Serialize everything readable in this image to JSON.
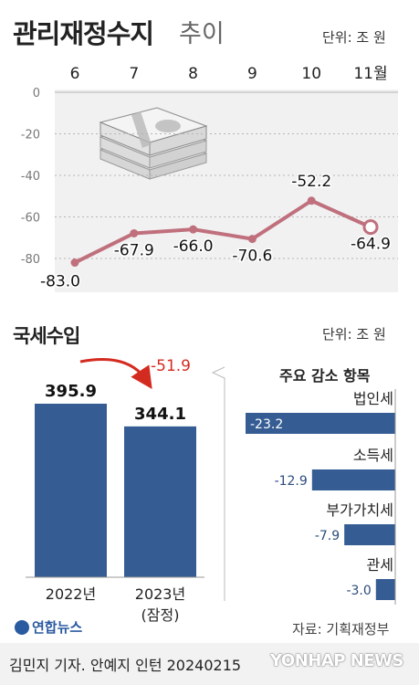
{
  "chart_data": [
    {
      "type": "line",
      "title": "관리재정수지",
      "subtitle": "추이",
      "unit": "단위: 조 원",
      "categories": [
        "6",
        "7",
        "8",
        "9",
        "10",
        "11월"
      ],
      "values": [
        -83.0,
        -67.9,
        -66.0,
        -70.6,
        -52.2,
        -64.9
      ],
      "value_labels": [
        "-83.0",
        "-67.9",
        "-66.0",
        "-70.6",
        "-52.2",
        "-64.9"
      ],
      "ylim": [
        -80,
        0
      ],
      "yticks": [
        "0",
        "-20",
        "-40",
        "-60",
        "-80"
      ],
      "ytick_values": [
        0,
        -20,
        -40,
        -60,
        -80
      ],
      "line_color": "#c0707d",
      "grid": true
    },
    {
      "type": "bar",
      "title": "국세수입",
      "categories": [
        "2022년",
        "2023년"
      ],
      "category_notes": [
        "",
        "(잠정)"
      ],
      "values": [
        395.9,
        344.1
      ],
      "value_labels": [
        "395.9",
        "344.1"
      ],
      "change_label": "-51.9",
      "bar_color": "#355d94",
      "arrow_color": "#d42b20"
    },
    {
      "type": "bar",
      "orientation": "horizontal",
      "title": "주요 감소 항목",
      "unit": "단위: 조 원",
      "categories": [
        "법인세",
        "소득세",
        "부가가치세",
        "관세"
      ],
      "values": [
        -23.2,
        -12.9,
        -7.9,
        -3.0
      ],
      "value_labels": [
        "-23.2",
        "-12.9",
        "-7.9",
        "-3.0"
      ],
      "bar_color": "#355d94"
    }
  ],
  "credits": {
    "source": "자료: 기획재정부",
    "reporter": "김민지 기자. 안예지 인턴 20240215",
    "logo": "연합뉴스",
    "watermark": "YONHAP NEWS"
  },
  "icons": [
    "money-stack-icon",
    "curved-arrow-icon",
    "yonhap-logo-icon"
  ]
}
